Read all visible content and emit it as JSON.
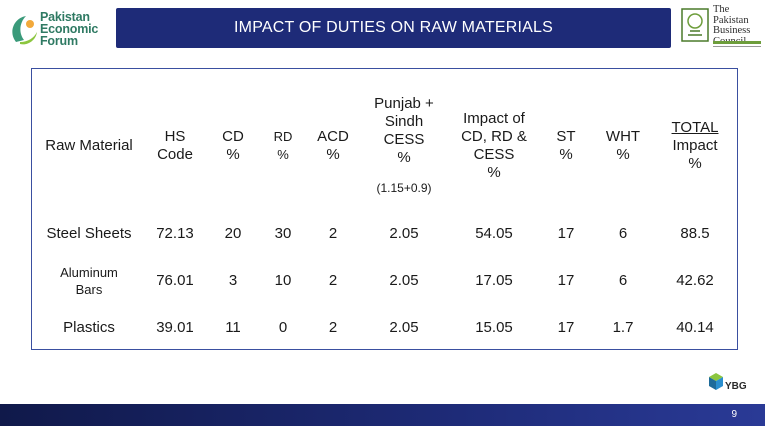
{
  "header": {
    "left_logo": {
      "line1": "Pakistan",
      "line2": "Economic",
      "line3": "Forum"
    },
    "title": "IMPACT OF DUTIES ON RAW MATERIALS",
    "right_logo": {
      "line1": "The",
      "line2": "Pakistan",
      "line3": "Business",
      "line4": "Council"
    }
  },
  "table": {
    "headers": {
      "raw_material": "Raw Material",
      "hs_code_1": "HS",
      "hs_code_2": "Code",
      "cd_1": "CD",
      "cd_2": "%",
      "rd_1": "RD",
      "rd_2": "%",
      "acd_1": "ACD",
      "acd_2": "%",
      "cess_1": "Punjab +",
      "cess_2": "Sindh",
      "cess_3": "CESS",
      "cess_4": "%",
      "cess_note": "(1.15+0.9)",
      "impact_1": "Impact of",
      "impact_2": "CD, RD &",
      "impact_3": "CESS",
      "impact_4": "%",
      "st_1": "ST",
      "st_2": "%",
      "wht_1": "WHT",
      "wht_2": "%",
      "total_1": "TOTAL",
      "total_2": "Impact",
      "total_3": "%"
    },
    "rows": [
      {
        "material": "Steel Sheets",
        "hs": "72.13",
        "cd": "20",
        "rd": "30",
        "acd": "2",
        "cess": "2.05",
        "impact": "54.05",
        "st": "17",
        "wht": "6",
        "total": "88.5"
      },
      {
        "material_1": "Aluminum",
        "material_2": "Bars",
        "hs": "76.01",
        "cd": "3",
        "rd": "10",
        "acd": "2",
        "cess": "2.05",
        "impact": "17.05",
        "st": "17",
        "wht": "6",
        "total": "42.62"
      },
      {
        "material": "Plastics",
        "hs": "39.01",
        "cd": "11",
        "rd": "0",
        "acd": "2",
        "cess": "2.05",
        "impact": "15.05",
        "st": "17",
        "wht": "1.7",
        "total": "40.14"
      }
    ]
  },
  "footer": {
    "brand": "YBG",
    "page_number": "9"
  }
}
